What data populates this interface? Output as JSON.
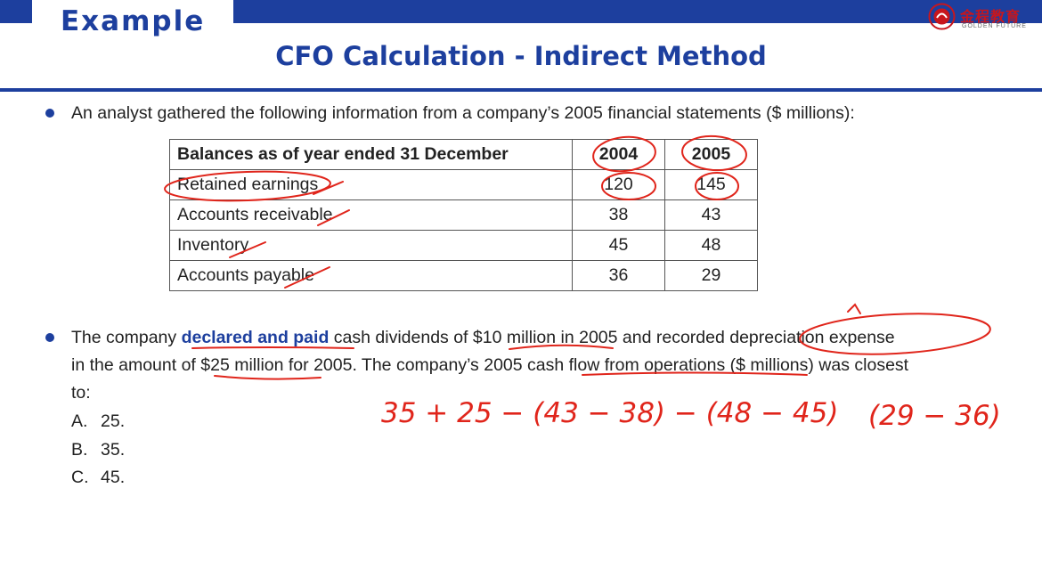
{
  "header": {
    "example_label": "Example",
    "title": "CFO Calculation - Indirect Method",
    "logo_cn": "金程教育",
    "logo_en": "GOLDEN FUTURE"
  },
  "intro": "An analyst gathered the following information from a company’s 2005 financial statements ($ millions):",
  "table": {
    "headers": [
      "Balances as of year ended 31 December",
      "2004",
      "2005"
    ],
    "rows": [
      [
        "Retained earnings",
        "120",
        "145"
      ],
      [
        "Accounts receivable",
        "38",
        "43"
      ],
      [
        "Inventory",
        "45",
        "48"
      ],
      [
        "Accounts payable",
        "36",
        "29"
      ]
    ]
  },
  "question": {
    "part1": "The company ",
    "highlight": "declared and paid",
    "part2": " cash dividends of $10 million in 2005 and recorded depreciation expense",
    "line2": "in the amount of $25 million for 2005. The company’s 2005 cash flow from operations ($ millions) was closest",
    "line3": "to:"
  },
  "options": [
    {
      "letter": "A.",
      "value": "25."
    },
    {
      "letter": "B.",
      "value": "35."
    },
    {
      "letter": "C.",
      "value": "45."
    }
  ],
  "annotation": {
    "calc_a": "35 + 25 − (43 − 38) − (48 − 45)",
    "calc_b": "(29 − 36)"
  },
  "colors": {
    "accent": "#1d3f9e",
    "annotation": "#e0251b"
  }
}
